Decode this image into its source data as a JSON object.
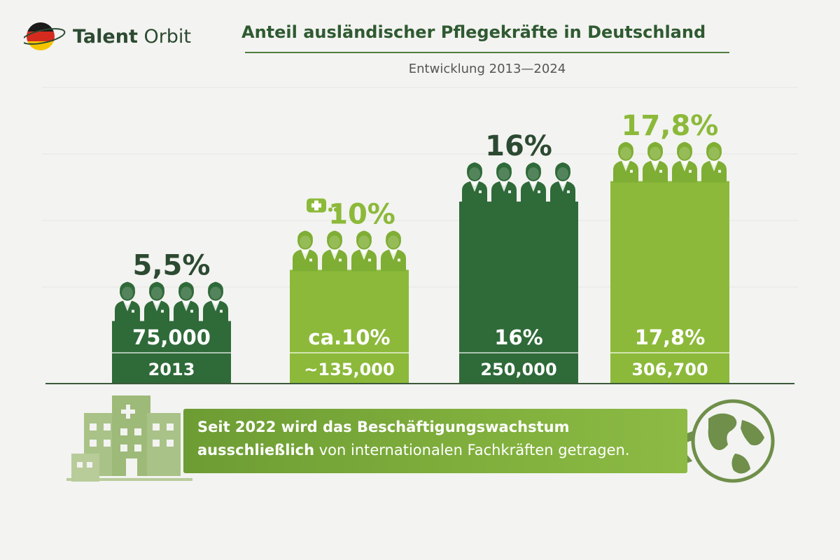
{
  "brand": {
    "name_bold": "Talent",
    "name_rest": " Orbit",
    "flag_colors": [
      "#1a1a1a",
      "#d52b1e",
      "#f5c400"
    ]
  },
  "header": {
    "title": "Anteil ausländischer Pflegekräfte in Deutschland",
    "subtitle": "Entwicklung 2013—2024"
  },
  "colors": {
    "dark_green": "#2f6a39",
    "light_green": "#8cb93a",
    "banner_green": "#7aa83a",
    "muted_green": "#a9c287"
  },
  "chart_data": {
    "type": "bar",
    "title": "Anteil ausländischer Pflegekräfte in Deutschland",
    "subtitle": "Entwicklung 2013—2024",
    "bars": [
      {
        "top_label": "5,5%",
        "inner_label": "75,000",
        "bottom_label": "2013",
        "value": 5.5,
        "color": "#2f6a39"
      },
      {
        "top_label": "10%",
        "inner_label": "ca.10%",
        "bottom_label": "~135,000",
        "value": 10,
        "color": "#8cb93a"
      },
      {
        "top_label": "16%",
        "inner_label": "16%",
        "bottom_label": "250,000",
        "value": 16,
        "color": "#2f6a39"
      },
      {
        "top_label": "17,8%",
        "inner_label": "17,8%",
        "bottom_label": "306,700",
        "value": 17.8,
        "color": "#8cb93a"
      }
    ],
    "ylim": [
      0,
      20
    ]
  },
  "banner": {
    "line1": "Seit 2022 wird das Beschäftigungswachstum",
    "line2_bold": "ausschließlich",
    "line2_rest": " von internationalen Fachkräften getragen."
  },
  "icons": [
    "hospital-icon",
    "airplane-icon",
    "globe-icon",
    "nurse-icon",
    "medical-badge-icon"
  ]
}
